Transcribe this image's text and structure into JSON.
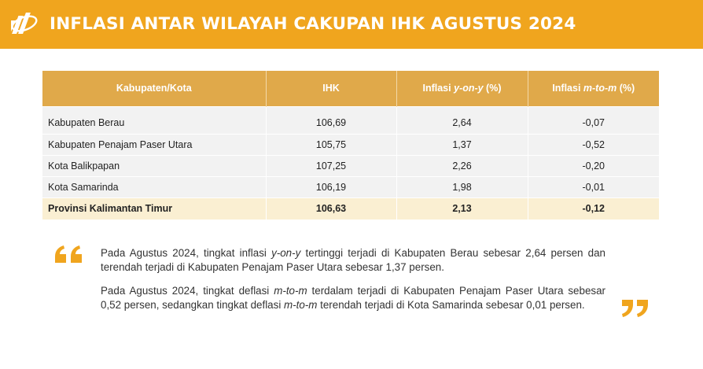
{
  "header": {
    "title": "INFLASI ANTAR WILAYAH CAKUPAN IHK AGUSTUS 2024",
    "logo_icon": "bps-logo-icon",
    "background_color": "#F0A51E"
  },
  "table": {
    "columns": [
      "Kabupaten/Kota",
      "IHK",
      "Inflasi y-on-y (%)",
      "Inflasi m-to-m (%)"
    ],
    "column_parts": {
      "yoy": {
        "prefix": "Inflasi ",
        "italic": "y-on-y",
        "suffix": " (%)"
      },
      "mtm": {
        "prefix": "Inflasi ",
        "italic": "m-to-m",
        "suffix": " (%)"
      }
    },
    "rows": [
      {
        "name": "Kabupaten Berau",
        "ihk": "106,69",
        "yoy": "2,64",
        "mtm": "-0,07"
      },
      {
        "name": "Kabupaten Penajam Paser Utara",
        "ihk": "105,75",
        "yoy": "1,37",
        "mtm": "-0,52"
      },
      {
        "name": "Kota Balikpapan",
        "ihk": "107,25",
        "yoy": "2,26",
        "mtm": "-0,20"
      },
      {
        "name": "Kota Samarinda",
        "ihk": "106,19",
        "yoy": "1,98",
        "mtm": "-0,01"
      }
    ],
    "total": {
      "name": "Provinsi Kalimantan Timur",
      "ihk": "106,63",
      "yoy": "2,13",
      "mtm": "-0,12"
    },
    "header_color": "#E0A94A",
    "total_row_color": "#FAEFD2"
  },
  "notes": {
    "paragraph1": {
      "a": "Pada Agustus 2024, tingkat inflasi ",
      "b": "y-on-y",
      "c": " tertinggi terjadi di Kabupaten Berau sebesar 2,64 persen dan terendah terjadi di Kabupaten Penajam Paser Utara sebesar 1,37 persen."
    },
    "paragraph2": {
      "a": "Pada Agustus 2024, tingkat deflasi ",
      "b": "m-to-m",
      "c": " terdalam terjadi di Kabupaten Penajam Paser Utara sebesar 0,52 persen, sedangkan tingkat deflasi ",
      "d": "m-to-m",
      "e": " terendah terjadi di Kota Samarinda sebesar 0,01 persen."
    },
    "quote_open_icon": "quote-open-icon",
    "quote_close_icon": "quote-close-icon",
    "quote_color": "#F0A51E"
  }
}
